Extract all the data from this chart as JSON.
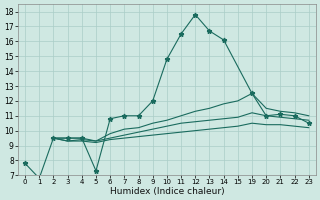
{
  "xlabel": "Humidex (Indice chaleur)",
  "xlim_indices": [
    -0.5,
    20.5
  ],
  "ylim": [
    7,
    18.5
  ],
  "xtick_indices": [
    0,
    1,
    2,
    3,
    4,
    5,
    6,
    7,
    8,
    9,
    10,
    11,
    12,
    13,
    14,
    15,
    16,
    17,
    18,
    19,
    20
  ],
  "xtick_labels": [
    "0",
    "1",
    "2",
    "3",
    "4",
    "5",
    "6",
    "7",
    "8",
    "9",
    "10",
    "11",
    "12",
    "13",
    "14",
    "15",
    "19",
    "20",
    "21",
    "22",
    "23"
  ],
  "x_map": {
    "0": 0,
    "1": 1,
    "2": 2,
    "3": 3,
    "4": 4,
    "5": 5,
    "6": 6,
    "7": 7,
    "8": 8,
    "9": 9,
    "10": 10,
    "11": 11,
    "12": 12,
    "13": 13,
    "14": 14,
    "15": 15,
    "19": 16,
    "20": 17,
    "21": 18,
    "22": 19,
    "23": 20
  },
  "yticks": [
    7,
    8,
    9,
    10,
    11,
    12,
    13,
    14,
    15,
    16,
    17,
    18
  ],
  "bg_color": "#cfe8e2",
  "grid_color": "#aacec7",
  "line_color": "#1a6b5e",
  "lines": [
    {
      "x": [
        0,
        1,
        2,
        3,
        4,
        5,
        6,
        7,
        8,
        9,
        10,
        11,
        12,
        13,
        14,
        16,
        17,
        18,
        19,
        20
      ],
      "y": [
        7.8,
        6.8,
        9.5,
        9.5,
        9.5,
        7.3,
        10.8,
        11.0,
        11.0,
        12.0,
        14.8,
        16.5,
        17.8,
        16.7,
        16.1,
        12.5,
        11.0,
        11.1,
        11.0,
        10.5
      ],
      "has_markers": true
    },
    {
      "x": [
        2,
        3,
        4,
        5,
        6,
        7,
        8,
        9,
        10,
        11,
        12,
        13,
        14,
        15,
        16,
        17,
        18,
        19,
        20
      ],
      "y": [
        9.5,
        9.5,
        9.5,
        9.3,
        9.8,
        10.1,
        10.2,
        10.5,
        10.7,
        11.0,
        11.3,
        11.5,
        11.8,
        12.0,
        12.5,
        11.5,
        11.3,
        11.2,
        11.0
      ],
      "has_markers": false
    },
    {
      "x": [
        2,
        3,
        4,
        5,
        6,
        7,
        8,
        9,
        10,
        11,
        12,
        13,
        14,
        15,
        16,
        17,
        18,
        19,
        20
      ],
      "y": [
        9.5,
        9.3,
        9.4,
        9.3,
        9.5,
        9.7,
        9.9,
        10.1,
        10.3,
        10.5,
        10.6,
        10.7,
        10.8,
        10.9,
        11.2,
        11.0,
        10.9,
        10.8,
        10.7
      ],
      "has_markers": false
    },
    {
      "x": [
        2,
        3,
        4,
        5,
        6,
        7,
        8,
        9,
        10,
        11,
        12,
        13,
        14,
        15,
        16,
        17,
        18,
        19,
        20
      ],
      "y": [
        9.5,
        9.3,
        9.3,
        9.2,
        9.4,
        9.5,
        9.6,
        9.7,
        9.8,
        9.9,
        10.0,
        10.1,
        10.2,
        10.3,
        10.5,
        10.4,
        10.4,
        10.3,
        10.2
      ],
      "has_markers": false
    }
  ]
}
